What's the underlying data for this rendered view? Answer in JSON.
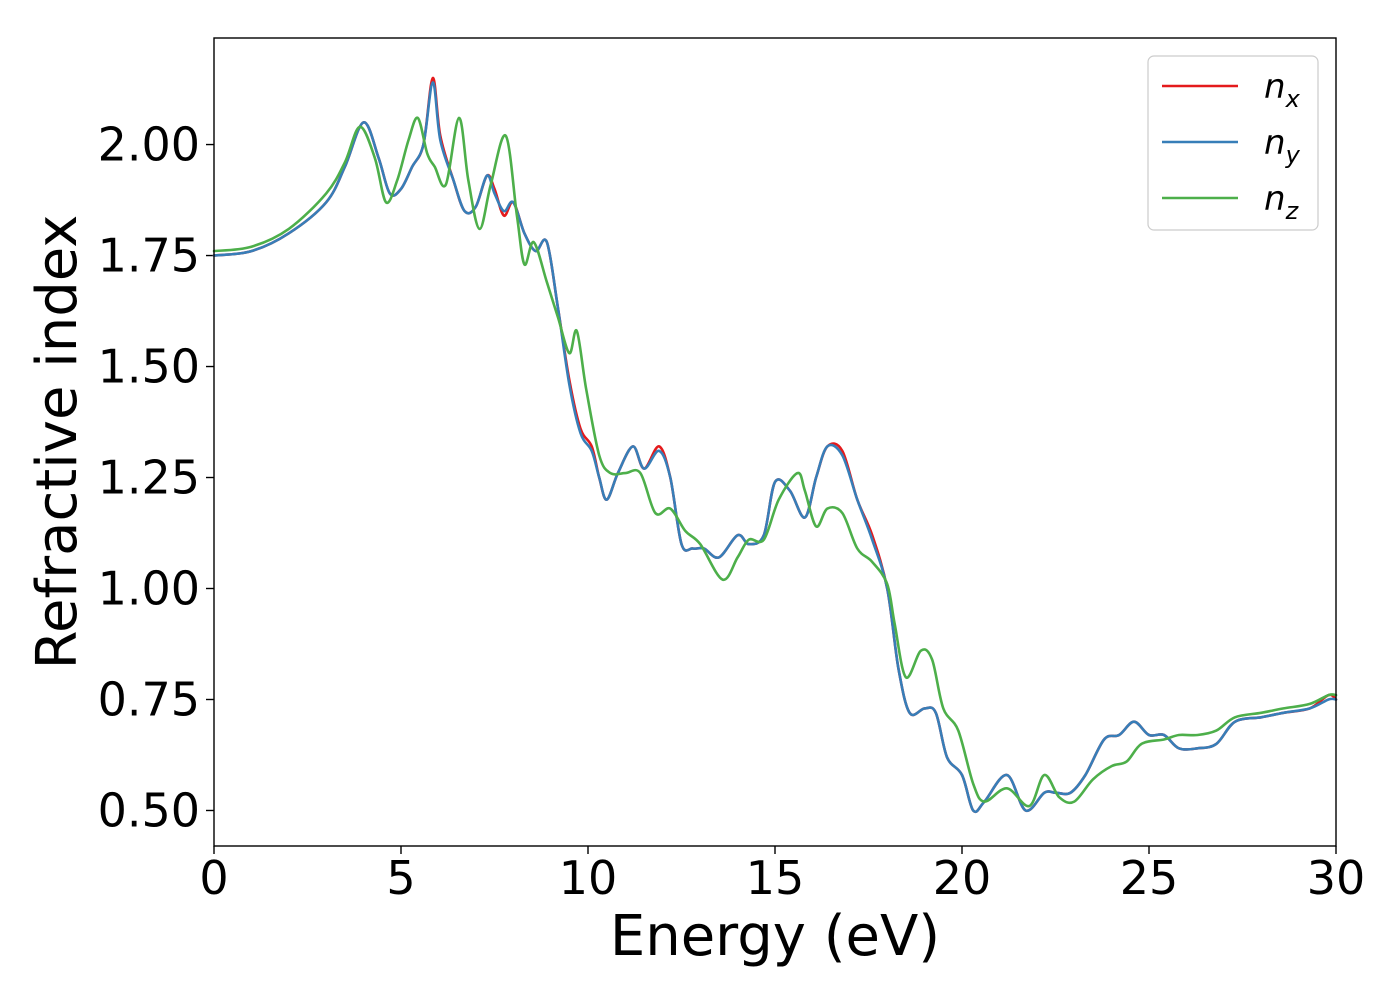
{
  "chart_data": {
    "type": "line",
    "xlabel": "Energy (eV)",
    "ylabel": "Refractive index",
    "xlim": [
      0,
      30
    ],
    "ylim": [
      0.42,
      2.24
    ],
    "x_ticks": [
      "0",
      "5",
      "10",
      "15",
      "20",
      "25",
      "30"
    ],
    "x_tick_values": [
      0,
      5,
      10,
      15,
      20,
      25,
      30
    ],
    "y_ticks": [
      "0.50",
      "0.75",
      "1.00",
      "1.25",
      "1.50",
      "1.75",
      "2.00"
    ],
    "y_tick_values": [
      0.5,
      0.75,
      1.0,
      1.25,
      1.5,
      1.75,
      2.0
    ],
    "grid": false,
    "legend_position": "top-right",
    "series": [
      {
        "name": "n_x",
        "label_base": "n",
        "label_sub": "x",
        "color": "#e41a1c",
        "points": [
          [
            0,
            1.75
          ],
          [
            1,
            1.76
          ],
          [
            2,
            1.8
          ],
          [
            3,
            1.87
          ],
          [
            3.5,
            1.95
          ],
          [
            4,
            2.05
          ],
          [
            4.4,
            1.97
          ],
          [
            4.7,
            1.89
          ],
          [
            5,
            1.9
          ],
          [
            5.3,
            1.95
          ],
          [
            5.6,
            2.0
          ],
          [
            5.85,
            2.15
          ],
          [
            6.05,
            2.02
          ],
          [
            6.4,
            1.92
          ],
          [
            6.7,
            1.85
          ],
          [
            7.0,
            1.86
          ],
          [
            7.3,
            1.93
          ],
          [
            7.5,
            1.9
          ],
          [
            7.75,
            1.84
          ],
          [
            8.0,
            1.87
          ],
          [
            8.3,
            1.8
          ],
          [
            8.6,
            1.76
          ],
          [
            8.9,
            1.78
          ],
          [
            9.2,
            1.63
          ],
          [
            9.5,
            1.47
          ],
          [
            9.8,
            1.36
          ],
          [
            10.1,
            1.32
          ],
          [
            10.3,
            1.25
          ],
          [
            10.5,
            1.2
          ],
          [
            10.8,
            1.26
          ],
          [
            11.2,
            1.32
          ],
          [
            11.5,
            1.27
          ],
          [
            11.9,
            1.32
          ],
          [
            12.2,
            1.25
          ],
          [
            12.5,
            1.1
          ],
          [
            12.8,
            1.09
          ],
          [
            13.1,
            1.09
          ],
          [
            13.5,
            1.07
          ],
          [
            14.0,
            1.12
          ],
          [
            14.3,
            1.1
          ],
          [
            14.7,
            1.12
          ],
          [
            15.0,
            1.24
          ],
          [
            15.4,
            1.22
          ],
          [
            15.8,
            1.16
          ],
          [
            16.1,
            1.25
          ],
          [
            16.4,
            1.32
          ],
          [
            16.8,
            1.31
          ],
          [
            17.2,
            1.2
          ],
          [
            17.6,
            1.12
          ],
          [
            18.0,
            1.0
          ],
          [
            18.3,
            0.82
          ],
          [
            18.6,
            0.72
          ],
          [
            19.0,
            0.73
          ],
          [
            19.3,
            0.72
          ],
          [
            19.6,
            0.62
          ],
          [
            20.0,
            0.58
          ],
          [
            20.3,
            0.5
          ],
          [
            20.6,
            0.52
          ],
          [
            21.2,
            0.58
          ],
          [
            21.7,
            0.5
          ],
          [
            22.2,
            0.54
          ],
          [
            22.5,
            0.54
          ],
          [
            22.9,
            0.54
          ],
          [
            23.3,
            0.58
          ],
          [
            23.8,
            0.66
          ],
          [
            24.2,
            0.67
          ],
          [
            24.6,
            0.7
          ],
          [
            25.0,
            0.67
          ],
          [
            25.4,
            0.67
          ],
          [
            25.8,
            0.64
          ],
          [
            26.3,
            0.64
          ],
          [
            26.8,
            0.65
          ],
          [
            27.3,
            0.7
          ],
          [
            28.0,
            0.71
          ],
          [
            28.6,
            0.72
          ],
          [
            29.3,
            0.73
          ],
          [
            29.8,
            0.76
          ],
          [
            30,
            0.75
          ]
        ]
      },
      {
        "name": "n_y",
        "label_base": "n",
        "label_sub": "y",
        "color": "#377eb8",
        "points": [
          [
            0,
            1.75
          ],
          [
            1,
            1.76
          ],
          [
            2,
            1.8
          ],
          [
            3,
            1.87
          ],
          [
            3.5,
            1.95
          ],
          [
            4,
            2.05
          ],
          [
            4.4,
            1.97
          ],
          [
            4.7,
            1.89
          ],
          [
            5,
            1.9
          ],
          [
            5.3,
            1.95
          ],
          [
            5.6,
            2.0
          ],
          [
            5.85,
            2.14
          ],
          [
            6.05,
            2.01
          ],
          [
            6.4,
            1.92
          ],
          [
            6.7,
            1.85
          ],
          [
            7.0,
            1.86
          ],
          [
            7.3,
            1.93
          ],
          [
            7.5,
            1.89
          ],
          [
            7.75,
            1.85
          ],
          [
            8.0,
            1.87
          ],
          [
            8.3,
            1.8
          ],
          [
            8.6,
            1.76
          ],
          [
            8.9,
            1.78
          ],
          [
            9.2,
            1.63
          ],
          [
            9.5,
            1.46
          ],
          [
            9.8,
            1.35
          ],
          [
            10.1,
            1.31
          ],
          [
            10.3,
            1.25
          ],
          [
            10.5,
            1.2
          ],
          [
            10.8,
            1.26
          ],
          [
            11.2,
            1.32
          ],
          [
            11.5,
            1.27
          ],
          [
            11.9,
            1.31
          ],
          [
            12.2,
            1.25
          ],
          [
            12.5,
            1.1
          ],
          [
            12.8,
            1.09
          ],
          [
            13.1,
            1.09
          ],
          [
            13.5,
            1.07
          ],
          [
            14.0,
            1.12
          ],
          [
            14.3,
            1.1
          ],
          [
            14.7,
            1.12
          ],
          [
            15.0,
            1.24
          ],
          [
            15.4,
            1.22
          ],
          [
            15.8,
            1.16
          ],
          [
            16.1,
            1.25
          ],
          [
            16.4,
            1.32
          ],
          [
            16.8,
            1.3
          ],
          [
            17.2,
            1.2
          ],
          [
            17.6,
            1.11
          ],
          [
            18.0,
            1.0
          ],
          [
            18.3,
            0.82
          ],
          [
            18.6,
            0.72
          ],
          [
            19.0,
            0.73
          ],
          [
            19.3,
            0.72
          ],
          [
            19.6,
            0.62
          ],
          [
            20.0,
            0.58
          ],
          [
            20.3,
            0.5
          ],
          [
            20.6,
            0.52
          ],
          [
            21.2,
            0.58
          ],
          [
            21.7,
            0.5
          ],
          [
            22.2,
            0.54
          ],
          [
            22.5,
            0.54
          ],
          [
            22.9,
            0.54
          ],
          [
            23.3,
            0.58
          ],
          [
            23.8,
            0.66
          ],
          [
            24.2,
            0.67
          ],
          [
            24.6,
            0.7
          ],
          [
            25.0,
            0.67
          ],
          [
            25.4,
            0.67
          ],
          [
            25.8,
            0.64
          ],
          [
            26.3,
            0.64
          ],
          [
            26.8,
            0.65
          ],
          [
            27.3,
            0.7
          ],
          [
            28.0,
            0.71
          ],
          [
            28.6,
            0.72
          ],
          [
            29.3,
            0.73
          ],
          [
            29.8,
            0.75
          ],
          [
            30,
            0.75
          ]
        ]
      },
      {
        "name": "n_z",
        "label_base": "n",
        "label_sub": "z",
        "color": "#4daf4a",
        "points": [
          [
            0,
            1.76
          ],
          [
            1,
            1.77
          ],
          [
            2,
            1.81
          ],
          [
            3,
            1.89
          ],
          [
            3.5,
            1.96
          ],
          [
            3.9,
            2.04
          ],
          [
            4.3,
            1.97
          ],
          [
            4.6,
            1.87
          ],
          [
            4.9,
            1.92
          ],
          [
            5.2,
            2.01
          ],
          [
            5.45,
            2.06
          ],
          [
            5.7,
            1.98
          ],
          [
            5.9,
            1.95
          ],
          [
            6.2,
            1.91
          ],
          [
            6.55,
            2.06
          ],
          [
            6.8,
            1.92
          ],
          [
            7.1,
            1.81
          ],
          [
            7.4,
            1.91
          ],
          [
            7.8,
            2.02
          ],
          [
            8.1,
            1.84
          ],
          [
            8.3,
            1.73
          ],
          [
            8.55,
            1.78
          ],
          [
            8.9,
            1.69
          ],
          [
            9.2,
            1.61
          ],
          [
            9.5,
            1.53
          ],
          [
            9.7,
            1.58
          ],
          [
            9.95,
            1.45
          ],
          [
            10.3,
            1.3
          ],
          [
            10.6,
            1.26
          ],
          [
            11.0,
            1.26
          ],
          [
            11.4,
            1.26
          ],
          [
            11.8,
            1.17
          ],
          [
            12.2,
            1.18
          ],
          [
            12.6,
            1.13
          ],
          [
            13.0,
            1.1
          ],
          [
            13.6,
            1.02
          ],
          [
            14.0,
            1.07
          ],
          [
            14.3,
            1.11
          ],
          [
            14.7,
            1.11
          ],
          [
            15.1,
            1.2
          ],
          [
            15.6,
            1.26
          ],
          [
            15.8,
            1.22
          ],
          [
            16.1,
            1.14
          ],
          [
            16.4,
            1.18
          ],
          [
            16.8,
            1.17
          ],
          [
            17.2,
            1.09
          ],
          [
            17.6,
            1.06
          ],
          [
            18.0,
            1.01
          ],
          [
            18.2,
            0.92
          ],
          [
            18.5,
            0.8
          ],
          [
            18.9,
            0.86
          ],
          [
            19.2,
            0.84
          ],
          [
            19.5,
            0.73
          ],
          [
            19.9,
            0.68
          ],
          [
            20.3,
            0.56
          ],
          [
            20.6,
            0.52
          ],
          [
            21.2,
            0.55
          ],
          [
            21.8,
            0.51
          ],
          [
            22.2,
            0.58
          ],
          [
            22.6,
            0.53
          ],
          [
            23.0,
            0.52
          ],
          [
            23.5,
            0.57
          ],
          [
            24.0,
            0.6
          ],
          [
            24.4,
            0.61
          ],
          [
            24.8,
            0.65
          ],
          [
            25.4,
            0.66
          ],
          [
            25.8,
            0.67
          ],
          [
            26.3,
            0.67
          ],
          [
            26.8,
            0.68
          ],
          [
            27.3,
            0.71
          ],
          [
            28.0,
            0.72
          ],
          [
            28.6,
            0.73
          ],
          [
            29.3,
            0.74
          ],
          [
            29.8,
            0.76
          ],
          [
            30,
            0.76
          ]
        ]
      }
    ]
  }
}
